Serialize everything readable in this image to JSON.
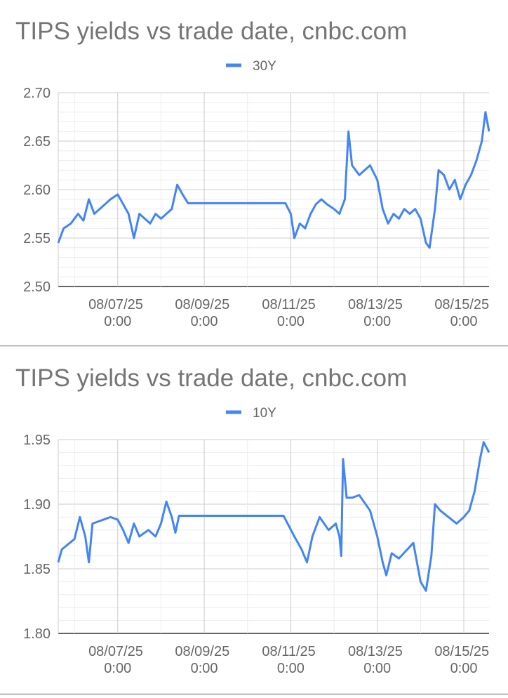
{
  "chart_data": [
    {
      "type": "line",
      "title": "TIPS yields vs trade date, cnbc.com",
      "x": [
        "08/05/25 15:00",
        "08/05/25 18:00",
        "08/05/25 22:00",
        "08/06/25 2:00",
        "08/06/25 5:00",
        "08/06/25 8:00",
        "08/06/25 11:00",
        "08/06/25 14:00",
        "08/06/25 17:00",
        "08/06/25 20:00",
        "08/07/25 0:00",
        "08/07/25 3:00",
        "08/07/25 6:00",
        "08/07/25 9:00",
        "08/07/25 12:00",
        "08/07/25 15:00",
        "08/07/25 18:00",
        "08/07/25 21:00",
        "08/08/25 0:00",
        "08/08/25 3:00",
        "08/08/25 6:00",
        "08/08/25 9:00",
        "08/08/25 12:00",
        "08/08/25 15:00",
        "08/10/25 21:00",
        "08/11/25 0:00",
        "08/11/25 2:00",
        "08/11/25 5:00",
        "08/11/25 8:00",
        "08/11/25 11:00",
        "08/11/25 14:00",
        "08/11/25 17:00",
        "08/11/25 20:00",
        "08/12/25 0:00",
        "08/12/25 3:00",
        "08/12/25 6:00",
        "08/12/25 8:00",
        "08/12/25 10:00",
        "08/12/25 14:00",
        "08/12/25 17:00",
        "08/12/25 20:00",
        "08/13/25 0:00",
        "08/13/25 3:00",
        "08/13/25 6:00",
        "08/13/25 9:00",
        "08/13/25 12:00",
        "08/13/25 15:00",
        "08/13/25 18:00",
        "08/13/25 21:00",
        "08/14/25 0:00",
        "08/14/25 3:00",
        "08/14/25 5:00",
        "08/14/25 8:00",
        "08/14/25 10:00",
        "08/14/25 13:00",
        "08/14/25 16:00",
        "08/14/25 19:00",
        "08/14/25 22:00",
        "08/15/25 1:00",
        "08/15/25 4:00",
        "08/15/25 7:00",
        "08/15/25 10:00",
        "08/15/25 12:00",
        "08/15/25 14:00"
      ],
      "series": [
        {
          "name": "30Y",
          "color": "#4285f4",
          "values": [
            2.545,
            2.56,
            2.565,
            2.575,
            2.568,
            2.59,
            2.575,
            2.58,
            2.585,
            2.59,
            2.595,
            2.585,
            2.575,
            2.55,
            2.575,
            2.57,
            2.565,
            2.575,
            2.57,
            2.575,
            2.58,
            2.605,
            2.595,
            2.586,
            2.586,
            2.575,
            2.55,
            2.565,
            2.56,
            2.575,
            2.585,
            2.59,
            2.585,
            2.58,
            2.575,
            2.59,
            2.66,
            2.625,
            2.615,
            2.62,
            2.625,
            2.61,
            2.58,
            2.565,
            2.575,
            2.57,
            2.58,
            2.575,
            2.58,
            2.57,
            2.545,
            2.54,
            2.58,
            2.62,
            2.615,
            2.6,
            2.61,
            2.59,
            2.605,
            2.615,
            2.63,
            2.65,
            2.68,
            2.66
          ]
        }
      ],
      "xlim": [
        "08/05/25 15:00",
        "08/15/25 14:00"
      ],
      "xticks": [
        {
          "value": "08/06/25 0:00",
          "label": null
        },
        "08/07/25 0:00",
        {
          "value": "08/08/25 0:00",
          "label": null
        },
        "08/09/25 0:00",
        {
          "value": "08/10/25 0:00",
          "label": null
        },
        "08/11/25 0:00",
        {
          "value": "08/12/25 0:00",
          "label": null
        },
        "08/13/25 0:00",
        {
          "value": "08/14/25 0:00",
          "label": null
        },
        "08/15/25 0:00"
      ],
      "ylim": [
        2.5,
        2.7
      ],
      "yticks": [
        {
          "value": 2.5,
          "label": "2.50"
        },
        {
          "value": 2.55,
          "label": "2.55"
        },
        {
          "value": 2.6,
          "label": "2.60"
        },
        {
          "value": 2.65,
          "label": "2.65"
        },
        {
          "value": 2.7,
          "label": "2.70"
        }
      ],
      "grid": true,
      "legend": "top"
    },
    {
      "type": "line",
      "title": "TIPS yields vs trade date, cnbc.com",
      "x": [
        "08/05/25 15:00",
        "08/05/25 17:00",
        "08/06/25 0:00",
        "08/06/25 3:00",
        "08/06/25 6:00",
        "08/06/25 8:00",
        "08/06/25 10:00",
        "08/06/25 14:00",
        "08/06/25 20:00",
        "08/07/25 0:00",
        "08/07/25 3:00",
        "08/07/25 6:00",
        "08/07/25 9:00",
        "08/07/25 12:00",
        "08/07/25 17:00",
        "08/07/25 21:00",
        "08/08/25 0:00",
        "08/08/25 3:00",
        "08/08/25 6:00",
        "08/08/25 8:00",
        "08/08/25 10:00",
        "08/10/25 20:00",
        "08/11/25 2:00",
        "08/11/25 6:00",
        "08/11/25 9:00",
        "08/11/25 12:00",
        "08/11/25 16:00",
        "08/11/25 21:00",
        "08/12/25 1:00",
        "08/12/25 3:00",
        "08/12/25 4:00",
        "08/12/25 5:00",
        "08/12/25 7:00",
        "08/12/25 10:00",
        "08/12/25 14:00",
        "08/12/25 20:00",
        "08/13/25 0:00",
        "08/13/25 3:00",
        "08/13/25 5:00",
        "08/13/25 8:00",
        "08/13/25 12:00",
        "08/13/25 20:00",
        "08/14/25 0:00",
        "08/14/25 3:00",
        "08/14/25 6:00",
        "08/14/25 8:00",
        "08/14/25 11:00",
        "08/14/25 20:00",
        "08/15/25 0:00",
        "08/15/25 3:00",
        "08/15/25 6:00",
        "08/15/25 9:00",
        "08/15/25 11:00",
        "08/15/25 14:00"
      ],
      "series": [
        {
          "name": "10Y",
          "color": "#4285f4",
          "values": [
            1.855,
            1.865,
            1.873,
            1.89,
            1.875,
            1.855,
            1.885,
            1.887,
            1.89,
            1.888,
            1.88,
            1.87,
            1.885,
            1.875,
            1.88,
            1.875,
            1.885,
            1.902,
            1.89,
            1.878,
            1.891,
            1.891,
            1.875,
            1.865,
            1.855,
            1.875,
            1.89,
            1.88,
            1.885,
            1.875,
            1.86,
            1.935,
            1.905,
            1.905,
            1.907,
            1.895,
            1.875,
            1.855,
            1.845,
            1.862,
            1.858,
            1.87,
            1.84,
            1.833,
            1.86,
            1.9,
            1.895,
            1.885,
            1.89,
            1.895,
            1.91,
            1.935,
            1.948,
            1.94
          ]
        }
      ],
      "xlim": [
        "08/05/25 15:00",
        "08/15/25 14:00"
      ],
      "xticks": [
        {
          "value": "08/06/25 0:00",
          "label": null
        },
        "08/07/25 0:00",
        {
          "value": "08/08/25 0:00",
          "label": null
        },
        "08/09/25 0:00",
        {
          "value": "08/10/25 0:00",
          "label": null
        },
        "08/11/25 0:00",
        {
          "value": "08/12/25 0:00",
          "label": null
        },
        "08/13/25 0:00",
        {
          "value": "08/14/25 0:00",
          "label": null
        },
        "08/15/25 0:00"
      ],
      "ylim": [
        1.8,
        1.95
      ],
      "yticks": [
        {
          "value": 1.8,
          "label": "1.80"
        },
        {
          "value": 1.85,
          "label": "1.85"
        },
        {
          "value": 1.9,
          "label": "1.90"
        },
        {
          "value": 1.95,
          "label": "1.95"
        }
      ],
      "grid": true,
      "legend": "top"
    }
  ]
}
